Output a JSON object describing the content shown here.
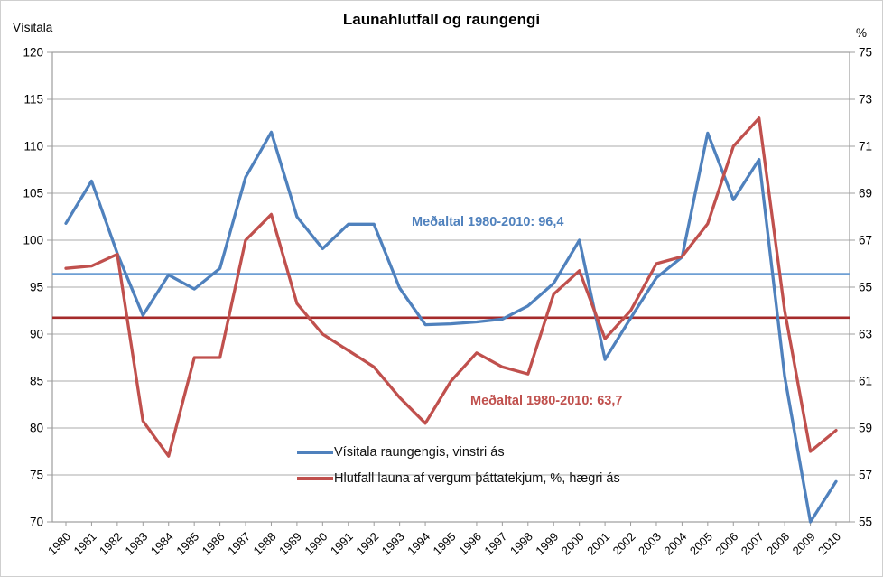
{
  "frame": {
    "title": "Launahlutfall og raungengi",
    "left_axis_unit": "Vísitala",
    "right_axis_unit": "%"
  },
  "annotations": {
    "blue_mean_label": "Meðaltal 1980-2010: 96,4",
    "red_mean_label": "Meðaltal 1980-2010: 63,7"
  },
  "legend": {
    "items": [
      {
        "label": "Vísitala raungengis, vinstri ás",
        "color": "#4f81bd"
      },
      {
        "label": "Hlutfall launa af vergum þáttatekjum, %, hægri ás",
        "color": "#c0504d"
      }
    ]
  },
  "colors": {
    "series_blue": "#4f81bd",
    "series_red": "#c0504d",
    "mean_blue": "#6e9fd4",
    "mean_red": "#a52a2a",
    "gridline": "#ababab",
    "plot_border": "#9c9c9c",
    "tick_text": "#000000"
  },
  "chart_data": {
    "type": "line",
    "title": "Launahlutfall og raungengi",
    "grid": "horizontal",
    "legend_position": "bottom-center-inside",
    "x": [
      1980,
      1981,
      1982,
      1983,
      1984,
      1985,
      1986,
      1987,
      1988,
      1989,
      1990,
      1991,
      1992,
      1993,
      1994,
      1995,
      1996,
      1997,
      1998,
      1999,
      2000,
      2001,
      2002,
      2003,
      2004,
      2005,
      2006,
      2007,
      2008,
      2009,
      2010
    ],
    "left_axis": {
      "label": "Vísitala",
      "min": 70,
      "max": 120,
      "step": 5
    },
    "right_axis": {
      "label": "%",
      "min": 55,
      "max": 75,
      "step": 2
    },
    "series": [
      {
        "name": "Vísitala raungengis, vinstri ás",
        "axis": "left",
        "color": "#4f81bd",
        "values": [
          101.8,
          106.3,
          98.6,
          92.0,
          96.3,
          94.8,
          97.0,
          106.7,
          111.5,
          102.5,
          99.1,
          101.7,
          101.7,
          94.9,
          91.0,
          91.1,
          91.3,
          91.6,
          93.0,
          95.4,
          100.0,
          87.3,
          91.7,
          96.0,
          98.2,
          111.4,
          104.3,
          108.6,
          85.5,
          70.0,
          74.3
        ]
      },
      {
        "name": "Hlutfall launa af vergum þáttatekjum, %, hægri ás",
        "axis": "right",
        "color": "#c0504d",
        "values": [
          65.8,
          65.9,
          66.4,
          59.3,
          57.8,
          62.0,
          62.0,
          67.0,
          68.1,
          64.3,
          63.0,
          62.3,
          61.6,
          60.3,
          59.2,
          61.0,
          62.2,
          61.6,
          61.3,
          64.7,
          65.7,
          62.8,
          64.0,
          66.0,
          66.3,
          67.7,
          71.0,
          72.2,
          64.0,
          58.0,
          58.9
        ]
      }
    ],
    "mean_lines": [
      {
        "axis": "left",
        "value": 96.4,
        "label": "Meðaltal 1980-2010: 96,4",
        "color": "#6e9fd4"
      },
      {
        "axis": "right",
        "value": 63.7,
        "label": "Meðaltal 1980-2010: 63,7",
        "color": "#a52a2a"
      }
    ]
  }
}
